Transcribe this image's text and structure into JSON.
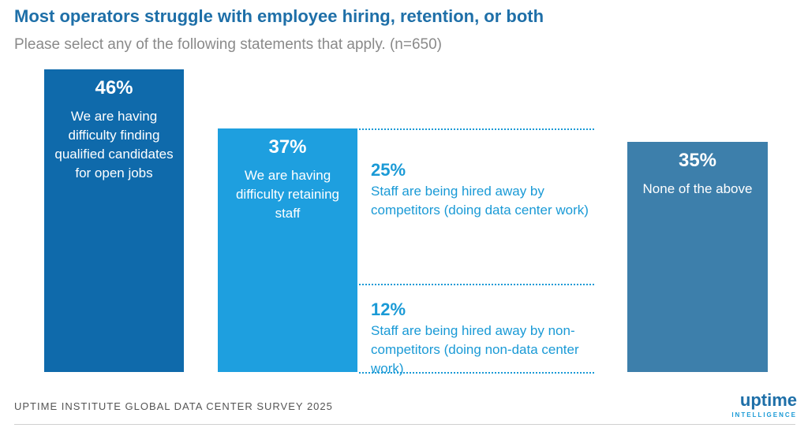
{
  "chart_data": {
    "type": "bar",
    "title": "Most operators struggle with employee hiring, retention, or both",
    "subtitle": "Please select any of the following statements that apply. (n=650)",
    "ylim": [
      0,
      46
    ],
    "unit": "%",
    "bars": [
      {
        "key": "hiring",
        "pct_label": "46%",
        "value": 46,
        "label": "We are having difficulty finding qualified candidates for open jobs",
        "color": "#0f6aab"
      },
      {
        "key": "retaining",
        "pct_label": "37%",
        "value": 37,
        "label": "We are having difficulty retaining staff",
        "color": "#1e9fdf"
      },
      {
        "key": "none",
        "pct_label": "35%",
        "value": 35,
        "label": "None of the above",
        "color": "#3d7fab"
      }
    ],
    "breakdown": [
      {
        "key": "competitors",
        "pct_label": "25%",
        "value": 25,
        "label": "Staff are being hired away by competitors (doing data center work)"
      },
      {
        "key": "non_competitors",
        "pct_label": "12%",
        "value": 12,
        "label": "Staff are being hired away by non-competitors (doing non-data center work)"
      }
    ],
    "source": "UPTIME INSTITUTE GLOBAL DATA CENTER SURVEY 2025"
  },
  "logo": {
    "word": "uptime",
    "tagline": "INTELLIGENCE"
  }
}
